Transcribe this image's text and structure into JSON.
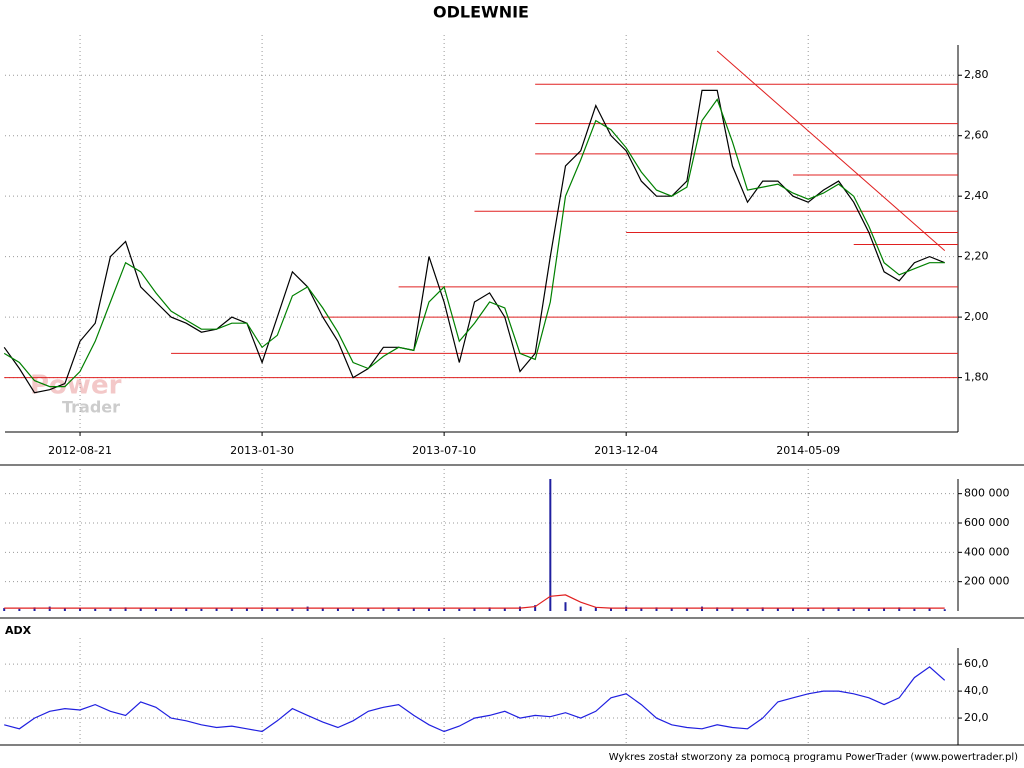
{
  "chart_data": [
    {
      "type": "line",
      "title": "ODLEWNIE",
      "watermark": [
        "Power",
        "Trader"
      ],
      "categories": [
        null,
        null,
        null,
        null,
        null,
        "2012-08-21",
        null,
        null,
        null,
        null,
        null,
        null,
        null,
        null,
        null,
        null,
        null,
        "2013-01-30",
        null,
        null,
        null,
        null,
        null,
        null,
        null,
        null,
        null,
        null,
        null,
        "2013-07-10",
        null,
        null,
        null,
        null,
        null,
        null,
        null,
        null,
        null,
        null,
        null,
        "2013-12-04",
        null,
        null,
        null,
        null,
        null,
        null,
        null,
        null,
        null,
        null,
        null,
        "2014-05-09",
        null,
        null,
        null,
        null,
        null,
        null,
        null,
        null,
        null
      ],
      "series": [
        {
          "color": "#000000",
          "values": [
            1.9,
            1.83,
            1.75,
            1.76,
            1.78,
            1.92,
            1.98,
            2.2,
            2.25,
            2.1,
            2.05,
            2.0,
            1.98,
            1.95,
            1.96,
            2.0,
            1.98,
            1.85,
            2.0,
            2.15,
            2.1,
            2.0,
            1.92,
            1.8,
            1.83,
            1.9,
            1.9,
            1.89,
            2.2,
            2.05,
            1.85,
            2.05,
            2.08,
            2.0,
            1.82,
            1.88,
            2.2,
            2.5,
            2.55,
            2.7,
            2.6,
            2.55,
            2.45,
            2.4,
            2.4,
            2.45,
            2.75,
            2.75,
            2.5,
            2.38,
            2.45,
            2.45,
            2.4,
            2.38,
            2.42,
            2.45,
            2.38,
            2.28,
            2.15,
            2.12,
            2.18,
            2.2,
            2.18
          ]
        },
        {
          "color": "#008000",
          "values": [
            1.88,
            1.85,
            1.79,
            1.77,
            1.77,
            1.82,
            1.92,
            2.05,
            2.18,
            2.15,
            2.08,
            2.02,
            1.99,
            1.96,
            1.96,
            1.98,
            1.98,
            1.9,
            1.94,
            2.07,
            2.1,
            2.03,
            1.95,
            1.85,
            1.83,
            1.87,
            1.9,
            1.89,
            2.05,
            2.1,
            1.92,
            1.98,
            2.05,
            2.03,
            1.88,
            1.86,
            2.05,
            2.4,
            2.52,
            2.65,
            2.62,
            2.56,
            2.48,
            2.42,
            2.4,
            2.43,
            2.65,
            2.72,
            2.58,
            2.42,
            2.43,
            2.44,
            2.41,
            2.39,
            2.41,
            2.44,
            2.4,
            2.3,
            2.18,
            2.14,
            2.16,
            2.18,
            2.18
          ]
        }
      ],
      "levels": [
        {
          "value": 1.8,
          "start": 0
        },
        {
          "value": 1.88,
          "start": 11
        },
        {
          "value": 2.0,
          "start": 21
        },
        {
          "value": 2.1,
          "start": 26
        },
        {
          "value": 2.24,
          "start": 56
        },
        {
          "value": 2.28,
          "start": 41
        },
        {
          "value": 2.35,
          "start": 31
        },
        {
          "value": 2.47,
          "start": 52
        },
        {
          "value": 2.54,
          "start": 35
        },
        {
          "value": 2.64,
          "start": 35
        },
        {
          "value": 2.77,
          "start": 35
        }
      ],
      "level_color": "#e02020",
      "trend": [
        [
          47,
          2.88
        ],
        [
          62,
          2.22
        ]
      ],
      "ylim": [
        1.62,
        2.9
      ],
      "yticks": [
        {
          "value": 1.8,
          "label": "1,80"
        },
        {
          "value": 2.0,
          "label": "2,00"
        },
        {
          "value": 2.2,
          "label": "2,20"
        },
        {
          "value": 2.4,
          "label": "2,40"
        },
        {
          "value": 2.6,
          "label": "2,60"
        },
        {
          "value": 2.8,
          "label": "2,80"
        }
      ],
      "grid": true
    },
    {
      "type": "bar",
      "series": [
        {
          "mark": "bar",
          "color": "#2020a0",
          "values": [
            20000,
            15000,
            25000,
            30000,
            18000,
            22000,
            15000,
            20000,
            25000,
            18000,
            15000,
            20000,
            17000,
            15000,
            22000,
            20000,
            18000,
            25000,
            20000,
            15000,
            30000,
            18000,
            20000,
            15000,
            17000,
            20000,
            25000,
            20000,
            18000,
            22000,
            15000,
            20000,
            25000,
            20000,
            30000,
            40000,
            900000,
            60000,
            30000,
            25000,
            20000,
            30000,
            20000,
            25000,
            18000,
            20000,
            30000,
            25000,
            20000,
            15000,
            25000,
            20000,
            22000,
            18000,
            20000,
            25000,
            15000,
            18000,
            20000,
            25000,
            15000,
            18000,
            12000
          ]
        },
        {
          "mark": "line",
          "color": "#e02020",
          "values": [
            20000,
            20000,
            20000,
            20000,
            20000,
            20000,
            20000,
            20000,
            20000,
            20000,
            20000,
            20000,
            20000,
            20000,
            20000,
            20000,
            20000,
            20000,
            20000,
            20000,
            20000,
            20000,
            20000,
            20000,
            20000,
            20000,
            20000,
            20000,
            20000,
            20000,
            20000,
            20000,
            20000,
            20000,
            20000,
            30000,
            100000,
            110000,
            60000,
            25000,
            20000,
            20000,
            20000,
            20000,
            20000,
            20000,
            20000,
            20000,
            20000,
            20000,
            20000,
            20000,
            20000,
            20000,
            20000,
            20000,
            20000,
            20000,
            20000,
            20000,
            20000,
            20000,
            20000
          ]
        }
      ],
      "ylim": [
        0,
        900000
      ],
      "yticks": [
        {
          "value": 200000,
          "label": "200 000"
        },
        {
          "value": 400000,
          "label": "400 000"
        },
        {
          "value": 600000,
          "label": "600 000"
        },
        {
          "value": 800000,
          "label": "800 000"
        }
      ],
      "grid": true
    },
    {
      "type": "line",
      "title": "ADX",
      "series": [
        {
          "color": "#2020e0",
          "values": [
            15,
            12,
            20,
            25,
            27,
            26,
            30,
            25,
            22,
            32,
            28,
            20,
            18,
            15,
            13,
            14,
            12,
            10,
            18,
            27,
            22,
            17,
            13,
            18,
            25,
            28,
            30,
            22,
            15,
            10,
            14,
            20,
            22,
            25,
            20,
            22,
            21,
            24,
            20,
            25,
            35,
            38,
            30,
            20,
            15,
            13,
            12,
            15,
            13,
            12,
            20,
            32,
            35,
            38,
            40,
            40,
            38,
            35,
            30,
            35,
            50,
            58,
            48
          ]
        }
      ],
      "ylim": [
        0,
        72
      ],
      "yticks": [
        {
          "value": 20,
          "label": "20,0"
        },
        {
          "value": 40,
          "label": "40,0"
        },
        {
          "value": 60,
          "label": "60,0"
        }
      ],
      "grid": true
    }
  ],
  "footer": "Wykres został stworzony za pomocą programu PowerTrader (www.powertrader.pl)"
}
